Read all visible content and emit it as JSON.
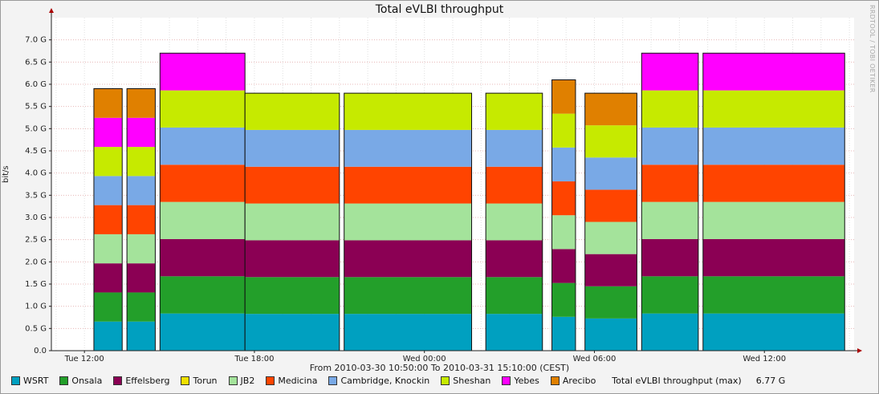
{
  "chart_data": {
    "type": "area",
    "title": "Total eVLBI throughput",
    "ylabel": "bit/s",
    "side_text": "RRDTOOL / TOBI OETIKER",
    "xrange_text": "From 2010-03-30 10:50:00 To 2010-03-31 15:10:00 (CEST)",
    "ylim": [
      0,
      7.5
    ],
    "yticks": [
      {
        "v": 0,
        "label": "0.0"
      },
      {
        "v": 0.5,
        "label": "0.5 G"
      },
      {
        "v": 1.0,
        "label": "1.0 G"
      },
      {
        "v": 1.5,
        "label": "1.5 G"
      },
      {
        "v": 2.0,
        "label": "2.0 G"
      },
      {
        "v": 2.5,
        "label": "2.5 G"
      },
      {
        "v": 3.0,
        "label": "3.0 G"
      },
      {
        "v": 3.5,
        "label": "3.5 G"
      },
      {
        "v": 4.0,
        "label": "4.0 G"
      },
      {
        "v": 4.5,
        "label": "4.5 G"
      },
      {
        "v": 5.0,
        "label": "5.0 G"
      },
      {
        "v": 5.5,
        "label": "5.5 G"
      },
      {
        "v": 6.0,
        "label": "6.0 G"
      },
      {
        "v": 6.5,
        "label": "6.5 G"
      },
      {
        "v": 7.0,
        "label": "7.0 G"
      }
    ],
    "xlim": [
      "2010-03-30 10:50",
      "2010-03-31 15:10"
    ],
    "xticks": [
      {
        "t": "2010-03-30 12:00",
        "label": "Tue 12:00"
      },
      {
        "t": "2010-03-30 18:00",
        "label": "Tue 18:00"
      },
      {
        "t": "2010-03-31 00:00",
        "label": "Wed 00:00"
      },
      {
        "t": "2010-03-31 06:00",
        "label": "Wed 06:00"
      },
      {
        "t": "2010-03-31 12:00",
        "label": "Wed 12:00"
      }
    ],
    "grid": true,
    "legend_position": "bottom",
    "series": [
      {
        "name": "WSRT",
        "color": "#00a0c0"
      },
      {
        "name": "Onsala",
        "color": "#239f2a"
      },
      {
        "name": "Effelsberg",
        "color": "#8b0054"
      },
      {
        "name": "Torun",
        "color": "#f0e000"
      },
      {
        "name": "JB2",
        "color": "#a4e39b"
      },
      {
        "name": "Medicina",
        "color": "#ff4400"
      },
      {
        "name": "Cambridge, Knockin",
        "color": "#79a9e6"
      },
      {
        "name": "Sheshan",
        "color": "#c6ea00"
      },
      {
        "name": "Yebes",
        "color": "#ff00ff"
      },
      {
        "name": "Arecibo",
        "color": "#e08000"
      }
    ],
    "max_label": "Total eVLBI throughput (max)",
    "max_value": "6.77 G",
    "segments": [
      {
        "start": "2010-03-30 12:20",
        "end": "2010-03-30 13:20",
        "stations": [
          "WSRT",
          "Onsala",
          "Effelsberg",
          "JB2",
          "Medicina",
          "Cambridge, Knockin",
          "Sheshan",
          "Yebes",
          "Arecibo"
        ],
        "total": 5.9
      },
      {
        "start": "2010-03-30 13:30",
        "end": "2010-03-30 14:30",
        "stations": [
          "WSRT",
          "Onsala",
          "Effelsberg",
          "JB2",
          "Medicina",
          "Cambridge, Knockin",
          "Sheshan",
          "Yebes",
          "Arecibo"
        ],
        "total": 5.9
      },
      {
        "start": "2010-03-30 14:40",
        "end": "2010-03-30 17:40",
        "stations": [
          "WSRT",
          "Onsala",
          "Effelsberg",
          "JB2",
          "Medicina",
          "Cambridge, Knockin",
          "Sheshan",
          "Yebes"
        ],
        "total": 6.7
      },
      {
        "start": "2010-03-30 17:40",
        "end": "2010-03-30 21:00",
        "stations": [
          "WSRT",
          "Onsala",
          "Effelsberg",
          "JB2",
          "Medicina",
          "Cambridge, Knockin",
          "Sheshan"
        ],
        "total": 5.8
      },
      {
        "start": "2010-03-30 21:10",
        "end": "2010-03-31 01:40",
        "stations": [
          "WSRT",
          "Onsala",
          "Effelsberg",
          "JB2",
          "Medicina",
          "Cambridge, Knockin",
          "Sheshan"
        ],
        "total": 5.8
      },
      {
        "start": "2010-03-31 02:10",
        "end": "2010-03-31 04:10",
        "stations": [
          "WSRT",
          "Onsala",
          "Effelsberg",
          "JB2",
          "Medicina",
          "Cambridge, Knockin",
          "Sheshan"
        ],
        "total": 5.8
      },
      {
        "start": "2010-03-31 04:30",
        "end": "2010-03-31 05:20",
        "stations": [
          "WSRT",
          "Onsala",
          "Effelsberg",
          "JB2",
          "Medicina",
          "Cambridge, Knockin",
          "Sheshan",
          "Arecibo"
        ],
        "total": 6.1
      },
      {
        "start": "2010-03-31 05:40",
        "end": "2010-03-31 07:30",
        "stations": [
          "WSRT",
          "Onsala",
          "Effelsberg",
          "JB2",
          "Medicina",
          "Cambridge, Knockin",
          "Sheshan",
          "Arecibo"
        ],
        "total": 5.8
      },
      {
        "start": "2010-03-31 07:40",
        "end": "2010-03-31 09:40",
        "stations": [
          "WSRT",
          "Onsala",
          "Effelsberg",
          "JB2",
          "Medicina",
          "Cambridge, Knockin",
          "Sheshan",
          "Yebes"
        ],
        "total": 6.7
      },
      {
        "start": "2010-03-31 09:50",
        "end": "2010-03-31 14:50",
        "stations": [
          "WSRT",
          "Onsala",
          "Effelsberg",
          "JB2",
          "Medicina",
          "Cambridge, Knockin",
          "Sheshan",
          "Yebes"
        ],
        "total": 6.7
      }
    ]
  }
}
